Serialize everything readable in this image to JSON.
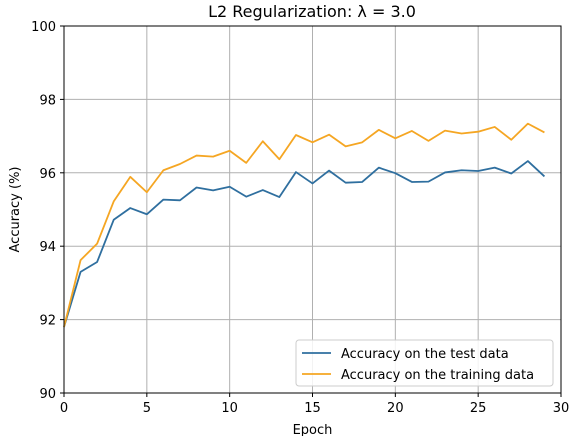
{
  "chart_data": {
    "type": "line",
    "title": "L2 Regularization: λ = 3.0",
    "xlabel": "Epoch",
    "ylabel": "Accuracy (%)",
    "xlim": [
      0,
      30
    ],
    "ylim": [
      90,
      100
    ],
    "xticks": [
      0,
      5,
      10,
      15,
      20,
      25,
      30
    ],
    "yticks": [
      90,
      92,
      94,
      96,
      98,
      100
    ],
    "grid": true,
    "legend_position": "lower-right",
    "x": [
      0,
      1,
      2,
      3,
      4,
      5,
      6,
      7,
      8,
      9,
      10,
      11,
      12,
      13,
      14,
      15,
      16,
      17,
      18,
      19,
      20,
      21,
      22,
      23,
      24,
      25,
      26,
      27,
      28,
      29
    ],
    "series": [
      {
        "name": "Accuracy on the test data",
        "color": "#2f6f9f",
        "values": [
          91.8,
          93.3,
          93.57,
          94.72,
          95.04,
          94.87,
          95.27,
          95.25,
          95.6,
          95.52,
          95.62,
          95.35,
          95.53,
          95.34,
          96.02,
          95.71,
          96.06,
          95.73,
          95.75,
          96.14,
          95.99,
          95.75,
          95.76,
          96.01,
          96.07,
          96.05,
          96.14,
          95.98,
          96.32,
          95.9
        ]
      },
      {
        "name": "Accuracy on the training data",
        "color": "#f5a623",
        "values": [
          91.8,
          93.62,
          94.07,
          95.22,
          95.89,
          95.47,
          96.07,
          96.24,
          96.47,
          96.44,
          96.6,
          96.27,
          96.86,
          96.37,
          97.03,
          96.83,
          97.04,
          96.72,
          96.83,
          97.17,
          96.94,
          97.14,
          96.87,
          97.15,
          97.07,
          97.12,
          97.25,
          96.9,
          97.34,
          97.1
        ]
      }
    ]
  }
}
